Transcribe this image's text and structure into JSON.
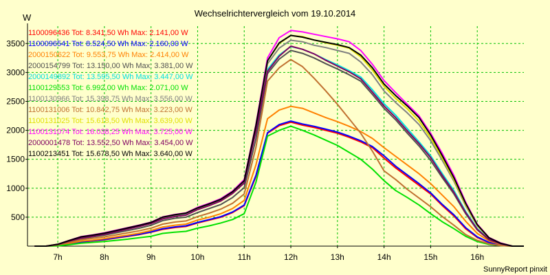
{
  "chart_data": {
    "type": "line",
    "title": "Wechselrichtervergleich vom 19.10.2014",
    "ylabel": "W",
    "xlabel": "",
    "footer": "SunnyReport pinxit",
    "ylim": [
      0,
      3800
    ],
    "xlim": [
      6.35,
      17.0
    ],
    "grid": true,
    "legend_position": "top-left",
    "y_ticks": [
      500,
      1000,
      1500,
      2000,
      2500,
      3000,
      3500
    ],
    "x_ticks": [
      {
        "value": 7,
        "label": "7h"
      },
      {
        "value": 8,
        "label": "8h"
      },
      {
        "value": 9,
        "label": "9h"
      },
      {
        "value": 10,
        "label": "10h"
      },
      {
        "value": 11,
        "label": "11h"
      },
      {
        "value": 12,
        "label": "12h"
      },
      {
        "value": 13,
        "label": "13h"
      },
      {
        "value": 14,
        "label": "14h"
      },
      {
        "value": 15,
        "label": "15h"
      },
      {
        "value": 16,
        "label": "16h"
      }
    ],
    "x": [
      6.5,
      6.75,
      7.0,
      7.25,
      7.5,
      7.75,
      8.0,
      8.25,
      8.5,
      8.75,
      9.0,
      9.25,
      9.5,
      9.75,
      10.0,
      10.25,
      10.5,
      10.75,
      11.0,
      11.25,
      11.5,
      11.75,
      12.0,
      12.25,
      12.5,
      12.75,
      13.0,
      13.25,
      13.5,
      13.75,
      14.0,
      14.25,
      14.5,
      14.75,
      15.0,
      15.25,
      15.5,
      15.75,
      16.0,
      16.25,
      16.5,
      16.75,
      17.0
    ],
    "series": [
      {
        "id": "1100096436",
        "legend": "1100096436 Tot: 8.341,50 Wh Max: 2.141,00 W",
        "color": "#ff0000",
        "values": [
          0,
          0,
          10,
          40,
          70,
          90,
          110,
          140,
          170,
          200,
          240,
          290,
          320,
          340,
          400,
          450,
          500,
          580,
          700,
          1200,
          1950,
          2080,
          2141,
          2090,
          2050,
          2000,
          1950,
          1880,
          1800,
          1700,
          1520,
          1350,
          1200,
          1050,
          900,
          700,
          520,
          300,
          150,
          60,
          20,
          0,
          0
        ]
      },
      {
        "id": "1100096541",
        "legend": "1100096541 Tot: 8.524,50 Wh Max: 2.160,00 W",
        "color": "#0000ff",
        "values": [
          0,
          0,
          12,
          45,
          75,
          95,
          115,
          145,
          175,
          205,
          245,
          300,
          330,
          350,
          410,
          460,
          510,
          590,
          710,
          1220,
          1960,
          2100,
          2160,
          2110,
          2070,
          2020,
          1970,
          1900,
          1820,
          1720,
          1560,
          1380,
          1230,
          1080,
          920,
          720,
          540,
          320,
          160,
          65,
          20,
          0,
          0
        ]
      },
      {
        "id": "2000150622",
        "legend": "2000150622 Tot: 9.553,75 Wh Max: 2.414,00 W",
        "color": "#ff8000",
        "values": [
          0,
          0,
          15,
          50,
          85,
          105,
          130,
          160,
          190,
          225,
          270,
          330,
          360,
          380,
          450,
          500,
          560,
          650,
          790,
          1400,
          2200,
          2350,
          2414,
          2380,
          2300,
          2220,
          2150,
          2070,
          1980,
          1860,
          1700,
          1550,
          1400,
          1250,
          1080,
          880,
          680,
          430,
          220,
          90,
          30,
          0,
          0
        ]
      },
      {
        "id": "2000154799",
        "legend": "2000154799 Tot: 13.150,00 Wh Max: 3.381,00 W",
        "color": "#505050",
        "values": [
          0,
          0,
          25,
          80,
          130,
          160,
          190,
          230,
          270,
          310,
          360,
          440,
          480,
          500,
          580,
          650,
          720,
          840,
          1010,
          1850,
          2980,
          3230,
          3381,
          3330,
          3250,
          3150,
          3060,
          2960,
          2850,
          2620,
          2380,
          2180,
          1950,
          1730,
          1480,
          1180,
          900,
          560,
          280,
          110,
          40,
          0,
          0
        ]
      },
      {
        "id": "2000149892",
        "legend": "2000149892 Tot: 13.595,50 Wh Max: 3.447,00 W",
        "color": "#00e0e0",
        "values": [
          0,
          0,
          30,
          90,
          145,
          175,
          210,
          255,
          300,
          345,
          395,
          480,
          520,
          545,
          640,
          710,
          790,
          920,
          1100,
          2000,
          3050,
          3300,
          3447,
          3400,
          3320,
          3220,
          3130,
          3030,
          2920,
          2700,
          2460,
          2260,
          2030,
          1800,
          1560,
          1250,
          960,
          600,
          300,
          120,
          40,
          0,
          0
        ]
      },
      {
        "id": "1100129553",
        "legend": "1100129553 Tot: 6.992,00 Wh Max: 2.071,00 W",
        "color": "#00e000",
        "values": [
          0,
          0,
          5,
          25,
          50,
          65,
          80,
          100,
          120,
          145,
          170,
          220,
          240,
          255,
          310,
          350,
          400,
          460,
          560,
          1100,
          1900,
          2000,
          2071,
          2000,
          1920,
          1830,
          1740,
          1620,
          1500,
          1330,
          1130,
          960,
          840,
          710,
          560,
          420,
          300,
          170,
          80,
          30,
          10,
          0,
          0
        ]
      },
      {
        "id": "1100130966",
        "legend": "1100130966 Tot: 15.398,75 Wh Max: 3.556,00 W",
        "color": "#808080",
        "values": [
          0,
          0,
          30,
          95,
          155,
          185,
          220,
          265,
          310,
          355,
          405,
          490,
          530,
          560,
          650,
          720,
          800,
          930,
          1120,
          2050,
          3150,
          3420,
          3556,
          3530,
          3470,
          3430,
          3380,
          3330,
          3180,
          2960,
          2680,
          2480,
          2300,
          2100,
          1820,
          1480,
          1120,
          700,
          350,
          140,
          50,
          0,
          0
        ]
      },
      {
        "id": "1100131006",
        "legend": "1100131006 Tot: 10.842,75 Wh Max: 3.223,00 W",
        "color": "#c07030",
        "values": [
          0,
          0,
          20,
          65,
          110,
          135,
          160,
          195,
          230,
          265,
          310,
          380,
          415,
          435,
          510,
          570,
          640,
          740,
          900,
          1700,
          2850,
          3080,
          3223,
          3100,
          2900,
          2680,
          2450,
          2200,
          1950,
          1640,
          1300,
          1150,
          980,
          830,
          680,
          510,
          360,
          200,
          100,
          40,
          10,
          0,
          0
        ]
      },
      {
        "id": "1100131025",
        "legend": "1100131025 Tot: 15.618,50 Wh Max: 3.639,00 W",
        "color": "#e0e000",
        "values": [
          0,
          0,
          32,
          98,
          160,
          190,
          225,
          270,
          315,
          360,
          410,
          500,
          540,
          570,
          660,
          730,
          810,
          940,
          1130,
          2080,
          3200,
          3500,
          3639,
          3620,
          3560,
          3510,
          3470,
          3420,
          3270,
          3040,
          2760,
          2550,
          2370,
          2160,
          1870,
          1520,
          1150,
          720,
          360,
          140,
          50,
          0,
          0
        ]
      },
      {
        "id": "1100131074",
        "legend": "1100131074 Tot: 16.038,25 Wh Max: 3.725,00 W",
        "color": "#ff00ff",
        "values": [
          0,
          0,
          33,
          100,
          165,
          195,
          230,
          275,
          320,
          365,
          415,
          505,
          545,
          575,
          670,
          740,
          820,
          950,
          1150,
          2100,
          3250,
          3600,
          3725,
          3700,
          3660,
          3620,
          3580,
          3530,
          3380,
          3140,
          2860,
          2650,
          2450,
          2250,
          1950,
          1600,
          1220,
          760,
          380,
          150,
          55,
          0,
          0
        ]
      },
      {
        "id": "2000001478",
        "legend": "2000001478 Tot: 13.552,50 Wh Max: 3.454,00 W",
        "color": "#800060",
        "values": [
          0,
          0,
          28,
          88,
          140,
          170,
          205,
          250,
          295,
          340,
          390,
          470,
          510,
          535,
          630,
          700,
          780,
          910,
          1090,
          1980,
          3020,
          3280,
          3454,
          3400,
          3320,
          3210,
          3110,
          3010,
          2890,
          2660,
          2420,
          2220,
          1990,
          1770,
          1530,
          1220,
          930,
          580,
          290,
          115,
          40,
          0,
          0
        ]
      },
      {
        "id": "1100213451",
        "legend": "1100213451 Tot: 15.678,50 Wh Max: 3.640,00 W",
        "color": "#000000",
        "values": [
          0,
          0,
          32,
          98,
          160,
          190,
          225,
          270,
          315,
          360,
          410,
          500,
          540,
          570,
          660,
          730,
          810,
          940,
          1130,
          2080,
          3200,
          3510,
          3640,
          3610,
          3560,
          3520,
          3480,
          3430,
          3300,
          3080,
          2800,
          2600,
          2420,
          2220,
          1920,
          1560,
          1180,
          740,
          370,
          145,
          50,
          0,
          0
        ]
      }
    ]
  }
}
